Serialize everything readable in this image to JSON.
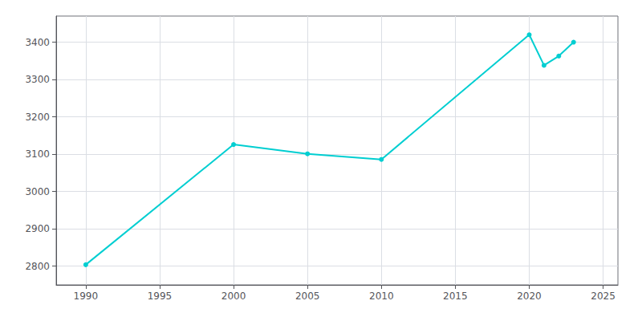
{
  "chart_data": {
    "type": "line",
    "x": [
      1990,
      2000,
      2005,
      2010,
      2020,
      2021,
      2022,
      2023
    ],
    "values": [
      2804,
      3126,
      3101,
      3086,
      3420,
      3338,
      3363,
      3400
    ],
    "color": "#00CED1",
    "marker": "circle",
    "xlim": [
      1988,
      2026
    ],
    "ylim": [
      2750,
      3470
    ],
    "xticks": [
      1990,
      1995,
      2000,
      2005,
      2010,
      2015,
      2020,
      2025
    ],
    "yticks": [
      2800,
      2900,
      3000,
      3100,
      3200,
      3300,
      3400
    ],
    "grid": true
  }
}
